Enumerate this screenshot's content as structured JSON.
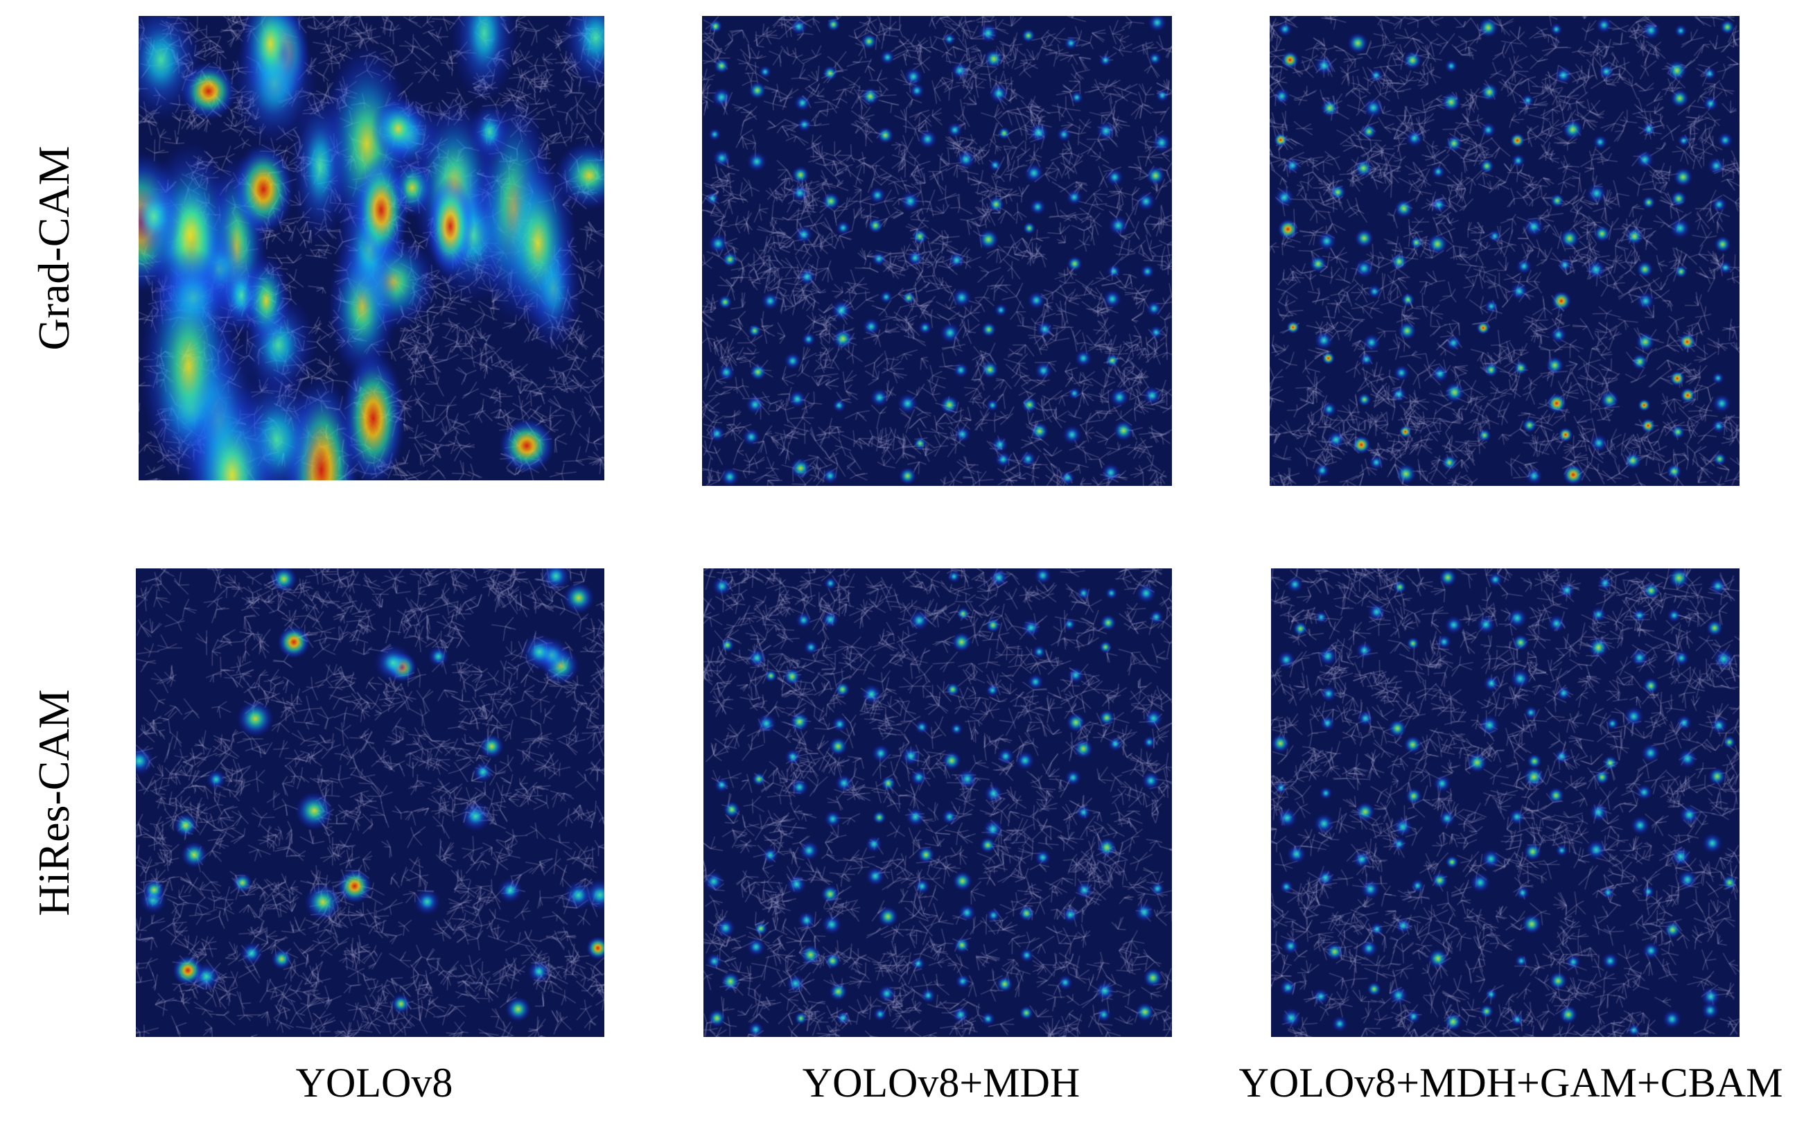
{
  "figure": {
    "row_labels": [
      "Grad-CAM",
      "HiRes-CAM"
    ],
    "column_labels": [
      "YOLOv8",
      "YOLOv8+MDH",
      "YOLOv8+MDH+GAM+CBAM"
    ],
    "panels": [
      {
        "row": "Grad-CAM",
        "column": "YOLOv8",
        "description_style": "broad-heatmap"
      },
      {
        "row": "Grad-CAM",
        "column": "YOLOv8+MDH",
        "description_style": "dense-points"
      },
      {
        "row": "Grad-CAM",
        "column": "YOLOv8+MDH+GAM+CBAM",
        "description_style": "dense-points-strong"
      },
      {
        "row": "HiRes-CAM",
        "column": "YOLOv8",
        "description_style": "sparse-points"
      },
      {
        "row": "HiRes-CAM",
        "column": "YOLOv8+MDH",
        "description_style": "dense-points"
      },
      {
        "row": "HiRes-CAM",
        "column": "YOLOv8+MDH+GAM+CBAM",
        "description_style": "dense-points"
      }
    ],
    "colors": {
      "background": "#0b1550",
      "colormap": "jet"
    }
  }
}
